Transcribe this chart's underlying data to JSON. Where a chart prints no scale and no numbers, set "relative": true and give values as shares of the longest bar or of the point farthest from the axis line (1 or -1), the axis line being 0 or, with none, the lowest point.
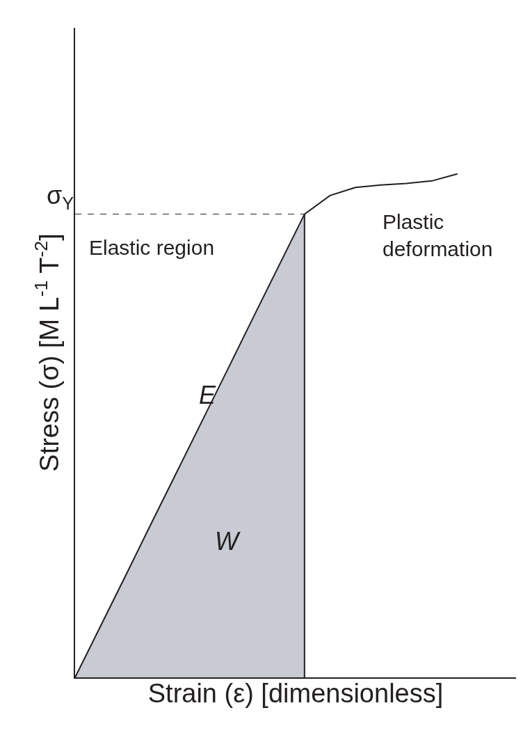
{
  "chart_data": {
    "type": "line",
    "relative": true,
    "xlabel": "Strain (ε) [dimensionless]",
    "ylabel": "Stress (σ) [M L$^{-1}$ T$^{-2}$]",
    "categories": [
      null,
      null,
      null,
      null,
      null,
      null,
      null,
      null,
      null,
      null,
      null,
      null,
      null,
      null,
      null,
      null
    ],
    "series": [
      {
        "type": "area",
        "color": "#c8cbd3",
        "values": [
          0,
          0.102,
          0.204,
          0.307,
          0.409,
          0.511,
          0.613,
          0.716,
          0.818,
          0.92,
          null,
          null,
          null,
          null,
          null,
          null
        ]
      },
      {
        "color": "#231f20",
        "values": [
          0,
          0.102,
          0.204,
          0.307,
          0.409,
          0.511,
          0.613,
          0.716,
          0.818,
          0.92,
          0.957,
          0.973,
          0.978,
          0.981,
          0.986,
          1
        ]
      }
    ],
    "ref_lines": [
      {
        "axis": "y",
        "value": 0.92,
        "label": "σ$_{Y}$",
        "line_style": "dashed",
        "color": "#231f20"
      }
    ],
    "annotations": [
      "Elastic region",
      "Plastic deformation",
      "E",
      "W"
    ],
    "legend": false,
    "tick_labels": false,
    "marker": "none",
    "line_style": "solid"
  }
}
